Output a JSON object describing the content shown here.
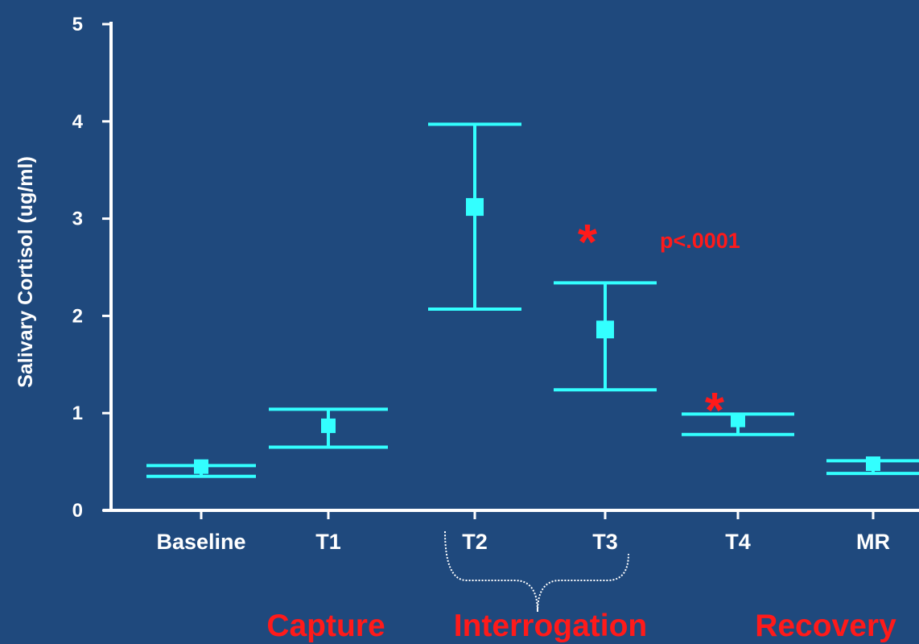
{
  "chart_data": {
    "type": "scatter",
    "ylabel": "Salivary Cortisol (ug/ml)",
    "xlabel": "",
    "ylim": [
      0,
      5
    ],
    "yticks": [
      "0",
      "1",
      "2",
      "3",
      "4",
      "5"
    ],
    "categories": [
      "Baseline",
      "T1",
      "T2",
      "T3",
      "T4",
      "MR"
    ],
    "points": [
      {
        "category": "Baseline",
        "mean": 0.45,
        "lower": 0.35,
        "upper": 0.46
      },
      {
        "category": "T1",
        "mean": 0.87,
        "lower": 0.65,
        "upper": 1.04
      },
      {
        "category": "T2",
        "mean": 3.12,
        "lower": 2.07,
        "upper": 3.97
      },
      {
        "category": "T3",
        "mean": 1.86,
        "lower": 1.24,
        "upper": 2.34
      },
      {
        "category": "T4",
        "mean": 0.93,
        "lower": 0.78,
        "upper": 0.99
      },
      {
        "category": "MR",
        "mean": 0.48,
        "lower": 0.38,
        "upper": 0.51
      }
    ],
    "annotations": {
      "significance_marker": "*",
      "p_value": "p<.0001",
      "phases": [
        "Capture",
        "Interrogation",
        "Recovery"
      ]
    },
    "grid": false,
    "legend": "none",
    "colors": {
      "background": "#1f497d",
      "axis": "#ffffff",
      "marker": "#33ffff",
      "annotation": "#ff1a1a"
    }
  }
}
